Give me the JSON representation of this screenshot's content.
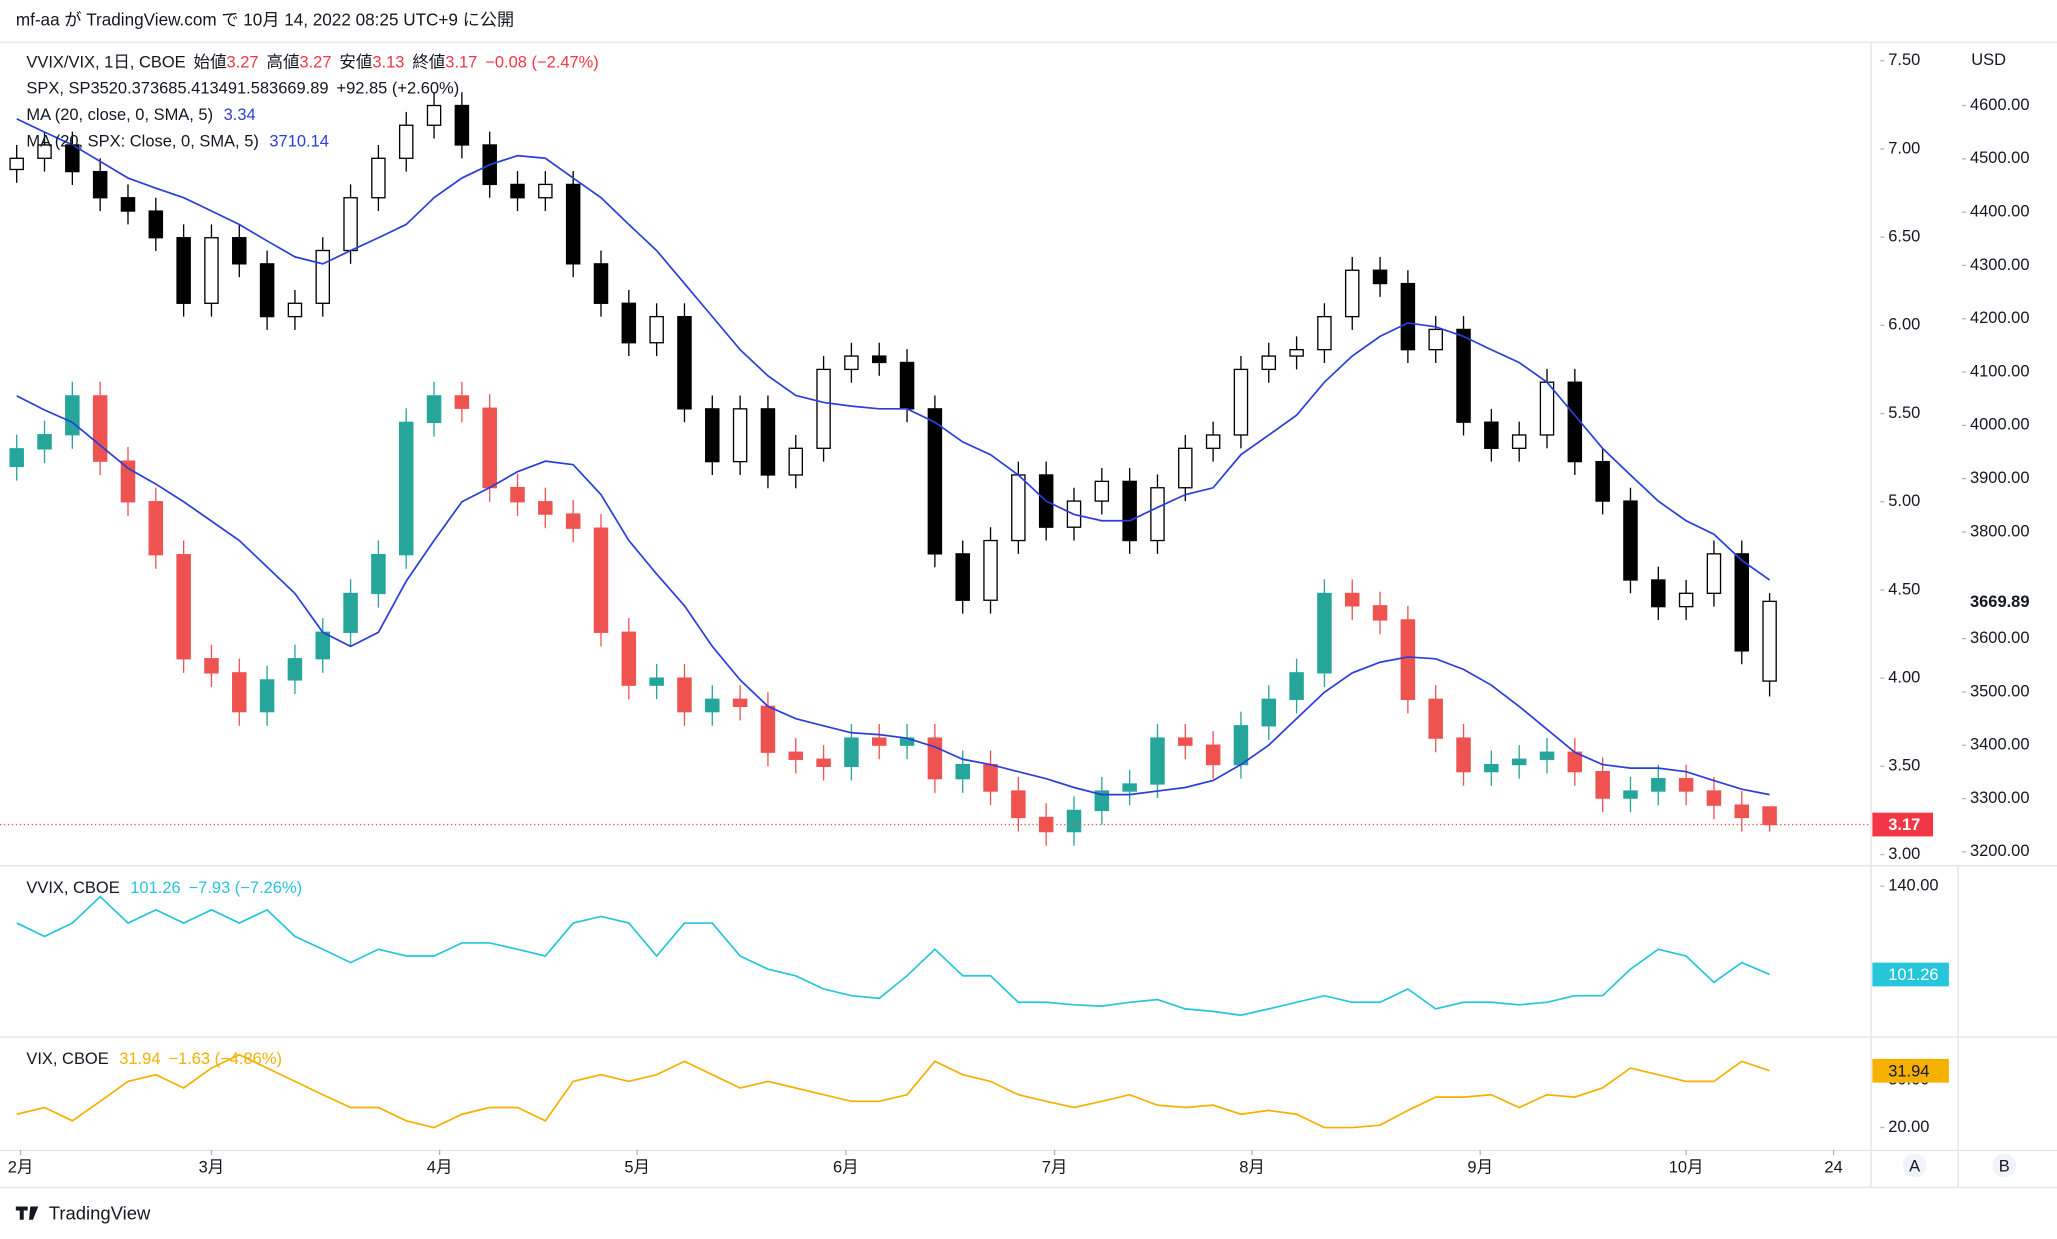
{
  "header": "mf-aa が TradingView.com で 10月 14, 2022 08:25 UTC+9 に公開",
  "footer": "TradingView",
  "chart_data": [
    {
      "type": "candlestick",
      "legend_labels": [
        "始値",
        "高値",
        "安値",
        "終値"
      ],
      "xlim": [
        -0.6,
        66.6
      ],
      "xticks": [
        {
          "value": 0.14,
          "label": "2月"
        },
        {
          "value": 7.0,
          "label": "3月"
        },
        {
          "value": 15.2,
          "label": "4月"
        },
        {
          "value": 22.3,
          "label": "5月"
        },
        {
          "value": 29.8,
          "label": "6月"
        },
        {
          "value": 37.3,
          "label": "7月"
        },
        {
          "value": 44.4,
          "label": "8月"
        },
        {
          "value": 52.6,
          "label": "9月"
        },
        {
          "value": 60.0,
          "label": "10月"
        },
        {
          "value": 65.3,
          "label": "24"
        }
      ],
      "ylim": [
        2.948,
        7.605
      ],
      "yticks": [
        {
          "value": 3,
          "label": "3.00"
        },
        {
          "value": 3.5,
          "label": "3.50"
        },
        {
          "value": 4,
          "label": "4.00"
        },
        {
          "value": 4.5,
          "label": "4.50"
        },
        {
          "value": 5,
          "label": "5.00"
        },
        {
          "value": 5.5,
          "label": "5.50"
        },
        {
          "value": 6,
          "label": "6.00"
        },
        {
          "value": 6.5,
          "label": "6.50"
        },
        {
          "value": 7,
          "label": "7.00"
        },
        {
          "value": 7.5,
          "label": "7.50"
        }
      ],
      "y2lim": [
        3177.8,
        4718.7
      ],
      "y2ticks": [
        {
          "value": 3200,
          "label": "3200.00"
        },
        {
          "value": 3300,
          "label": "3300.00"
        },
        {
          "value": 3400,
          "label": "3400.00"
        },
        {
          "value": 3500,
          "label": "3500.00"
        },
        {
          "value": 3600,
          "label": "3600.00"
        },
        {
          "value": 3800,
          "label": "3800.00"
        },
        {
          "value": 3900,
          "label": "3900.00"
        },
        {
          "value": 4000,
          "label": "4000.00"
        },
        {
          "value": 4100,
          "label": "4100.00"
        },
        {
          "value": 4200,
          "label": "4200.00"
        },
        {
          "value": 4300,
          "label": "4300.00"
        },
        {
          "value": 4400,
          "label": "4400.00"
        },
        {
          "value": 4500,
          "label": "4500.00"
        },
        {
          "value": 4600,
          "label": "4600.00"
        }
      ],
      "y2_label": "USD",
      "grid": false,
      "series": [
        {
          "name": "VVIX/VIX, 1日, CBOE",
          "up_color": "#26a69a",
          "down_color": "#ef5350",
          "legend_color": "#f23645",
          "change_label": "−0.08 (−2.47%)",
          "open": [
            5.2,
            5.3,
            5.38,
            5.6,
            5.23,
            5.0,
            4.7,
            4.11,
            4.03,
            3.81,
            3.99,
            4.11,
            4.26,
            4.48,
            4.7,
            5.45,
            5.6,
            5.53,
            5.08,
            5.0,
            4.93,
            4.85,
            4.26,
            3.96,
            4.0,
            3.81,
            3.88,
            3.84,
            3.58,
            3.54,
            3.5,
            3.66,
            3.62,
            3.66,
            3.43,
            3.51,
            3.36,
            3.21,
            3.13,
            3.25,
            3.36,
            3.4,
            3.66,
            3.62,
            3.51,
            3.73,
            3.88,
            4.03,
            4.48,
            4.41,
            4.33,
            3.88,
            3.66,
            3.47,
            3.51,
            3.54,
            3.58,
            3.47,
            3.32,
            3.36,
            3.43,
            3.36,
            3.28,
            3.27
          ],
          "high": [
            5.38,
            5.46,
            5.68,
            5.68,
            5.31,
            5.08,
            4.78,
            4.19,
            4.11,
            4.07,
            4.19,
            4.34,
            4.56,
            4.78,
            5.53,
            5.68,
            5.68,
            5.61,
            5.16,
            5.08,
            5.01,
            4.93,
            4.34,
            4.08,
            4.08,
            3.96,
            3.96,
            3.92,
            3.66,
            3.62,
            3.74,
            3.74,
            3.74,
            3.74,
            3.59,
            3.59,
            3.44,
            3.29,
            3.33,
            3.44,
            3.48,
            3.74,
            3.74,
            3.7,
            3.81,
            3.96,
            4.11,
            4.56,
            4.56,
            4.49,
            4.41,
            3.96,
            3.74,
            3.59,
            3.62,
            3.66,
            3.66,
            3.55,
            3.44,
            3.51,
            3.51,
            3.44,
            3.36,
            3.27
          ],
          "low": [
            5.12,
            5.22,
            5.3,
            5.15,
            4.92,
            4.62,
            4.03,
            3.95,
            3.73,
            3.73,
            3.91,
            4.03,
            4.18,
            4.4,
            4.62,
            5.37,
            5.45,
            5.0,
            4.92,
            4.85,
            4.77,
            4.18,
            3.88,
            3.88,
            3.73,
            3.73,
            3.76,
            3.5,
            3.46,
            3.42,
            3.42,
            3.54,
            3.54,
            3.35,
            3.35,
            3.28,
            3.13,
            3.05,
            3.05,
            3.17,
            3.28,
            3.32,
            3.54,
            3.43,
            3.43,
            3.65,
            3.8,
            3.95,
            4.33,
            4.25,
            3.8,
            3.58,
            3.39,
            3.39,
            3.43,
            3.46,
            3.39,
            3.24,
            3.24,
            3.28,
            3.28,
            3.2,
            3.13,
            3.13
          ],
          "close": [
            5.3,
            5.38,
            5.6,
            5.23,
            5.0,
            4.7,
            4.11,
            4.03,
            3.81,
            3.99,
            4.11,
            4.26,
            4.48,
            4.7,
            5.45,
            5.6,
            5.53,
            5.08,
            5.0,
            4.93,
            4.85,
            4.26,
            3.96,
            4.0,
            3.81,
            3.88,
            3.84,
            3.58,
            3.54,
            3.5,
            3.66,
            3.62,
            3.66,
            3.43,
            3.51,
            3.36,
            3.21,
            3.13,
            3.25,
            3.36,
            3.4,
            3.66,
            3.62,
            3.51,
            3.73,
            3.88,
            4.03,
            4.48,
            4.41,
            4.33,
            3.88,
            3.66,
            3.47,
            3.51,
            3.54,
            3.58,
            3.47,
            3.32,
            3.36,
            3.43,
            3.36,
            3.28,
            3.21,
            3.17
          ]
        },
        {
          "name": "SPX, SP",
          "axis": "y2",
          "up_color": "#ffffff",
          "down_color": "#000000",
          "border_color": "#000000",
          "legend_color": "#131722",
          "change_label": "+92.85 (+2.60%)",
          "open": [
            4480,
            4501,
            4526,
            4476,
            4427,
            4402,
            4352,
            4229,
            4352,
            4303,
            4204,
            4229,
            4328,
            4427,
            4501,
            4563,
            4600,
            4526,
            4452,
            4427,
            4452,
            4303,
            4229,
            4155,
            4204,
            4031,
            3932,
            4031,
            3907,
            3957,
            4105,
            4130,
            4118,
            4031,
            3759,
            3672,
            3784,
            3907,
            3809,
            3858,
            3895,
            3784,
            3883,
            3957,
            3982,
            4105,
            4130,
            4142,
            4204,
            4291,
            4266,
            4142,
            4180,
            4006,
            3957,
            3982,
            4081,
            3932,
            3858,
            3710,
            3660,
            3685,
            3759,
            3520.37
          ],
          "high": [
            4526,
            4551,
            4551,
            4501,
            4452,
            4427,
            4377,
            4377,
            4377,
            4328,
            4254,
            4353,
            4452,
            4526,
            4588,
            4625,
            4625,
            4551,
            4477,
            4477,
            4477,
            4328,
            4254,
            4229,
            4229,
            4056,
            4056,
            4056,
            3982,
            4130,
            4155,
            4155,
            4143,
            4056,
            3784,
            3809,
            3932,
            3932,
            3883,
            3920,
            3920,
            3908,
            3982,
            4007,
            4130,
            4155,
            4167,
            4229,
            4316,
            4316,
            4291,
            4205,
            4205,
            4031,
            4007,
            4106,
            4106,
            3957,
            3883,
            3735,
            3710,
            3784,
            3784,
            3685.41
          ],
          "low": [
            4455,
            4476,
            4451,
            4402,
            4377,
            4327,
            4204,
            4204,
            4278,
            4179,
            4179,
            4204,
            4303,
            4402,
            4476,
            4538,
            4501,
            4427,
            4402,
            4402,
            4278,
            4204,
            4130,
            4130,
            4006,
            3907,
            3907,
            3882,
            3882,
            3932,
            4080,
            4093,
            4006,
            3734,
            3647,
            3647,
            3759,
            3784,
            3784,
            3833,
            3759,
            3759,
            3858,
            3932,
            3957,
            4080,
            4105,
            4117,
            4179,
            4241,
            4117,
            4117,
            3981,
            3932,
            3932,
            3957,
            3907,
            3833,
            3685,
            3635,
            3635,
            3660,
            3552,
            3491.58
          ],
          "close": [
            4501,
            4526,
            4476,
            4427,
            4402,
            4352,
            4229,
            4352,
            4303,
            4204,
            4229,
            4328,
            4427,
            4501,
            4563,
            4600,
            4526,
            4452,
            4427,
            4452,
            4303,
            4229,
            4155,
            4204,
            4031,
            3932,
            4031,
            3907,
            3957,
            4105,
            4130,
            4118,
            4031,
            3759,
            3672,
            3784,
            3907,
            3809,
            3858,
            3895,
            3784,
            3883,
            3957,
            3982,
            4105,
            4130,
            4142,
            4204,
            4291,
            4266,
            4142,
            4180,
            4006,
            3957,
            3982,
            4081,
            3932,
            3858,
            3710,
            3660,
            3685,
            3759,
            3577,
            3669.89
          ]
        },
        {
          "name": "MA (20, close, 0, SMA, 5)",
          "color": "#2a3fd8",
          "values": [
            5.6,
            5.52,
            5.45,
            5.32,
            5.19,
            5.1,
            5.0,
            4.89,
            4.78,
            4.63,
            4.48,
            4.26,
            4.18,
            4.26,
            4.55,
            4.78,
            5.0,
            5.08,
            5.17,
            5.23,
            5.21,
            5.04,
            4.78,
            4.59,
            4.41,
            4.18,
            3.99,
            3.84,
            3.77,
            3.73,
            3.69,
            3.68,
            3.66,
            3.61,
            3.54,
            3.51,
            3.47,
            3.43,
            3.38,
            3.34,
            3.34,
            3.36,
            3.38,
            3.42,
            3.51,
            3.62,
            3.77,
            3.92,
            4.03,
            4.09,
            4.12,
            4.11,
            4.05,
            3.96,
            3.84,
            3.71,
            3.58,
            3.51,
            3.49,
            3.49,
            3.47,
            3.42,
            3.37,
            3.34
          ]
        },
        {
          "name": "MA (20, SPX: Close, 0, SMA, 5)",
          "axis": "y2",
          "color": "#2a3fd8",
          "values": [
            4575,
            4550,
            4526,
            4495,
            4464,
            4445,
            4427,
            4402,
            4377,
            4346,
            4316,
            4303,
            4328,
            4352,
            4377,
            4427,
            4464,
            4489,
            4506,
            4501,
            4464,
            4427,
            4377,
            4328,
            4266,
            4204,
            4142,
            4093,
            4056,
            4043,
            4036,
            4031,
            4031,
            4006,
            3969,
            3945,
            3907,
            3858,
            3833,
            3821,
            3821,
            3846,
            3870,
            3883,
            3945,
            3982,
            4019,
            4081,
            4130,
            4167,
            4192,
            4185,
            4167,
            4142,
            4118,
            4081,
            4019,
            3957,
            3907,
            3858,
            3821,
            3796,
            3747,
            3710.14
          ]
        }
      ]
    },
    {
      "type": "line",
      "ylim": [
        74.7,
        148.1
      ],
      "yticks": [
        {
          "value": 140,
          "label": "140.00"
        }
      ],
      "series": [
        {
          "name": "VVIX, CBOE",
          "color": "#26c6da",
          "change_label": "−7.93 (−7.26%)",
          "values": [
            123.8,
            118,
            123.8,
            135.4,
            123.8,
            129.6,
            123.8,
            129.6,
            123.8,
            129.6,
            118,
            112.3,
            106.5,
            112.3,
            109.4,
            109.4,
            115.1,
            115.1,
            112.3,
            109.4,
            123.8,
            126.7,
            123.8,
            109.4,
            123.8,
            123.8,
            109.4,
            103.6,
            100.7,
            94.9,
            92,
            90.8,
            100.7,
            112.3,
            100.7,
            100.7,
            89.1,
            89.1,
            88,
            87.4,
            89.1,
            90.3,
            86.2,
            85.1,
            83.4,
            86.2,
            89.1,
            92,
            89.1,
            89.1,
            94.9,
            86.2,
            89.1,
            89.1,
            88,
            89.1,
            92,
            92,
            103.6,
            112.3,
            109.4,
            97.8,
            106.5,
            101.26
          ]
        }
      ]
    },
    {
      "type": "line",
      "ylim": [
        15.3,
        38.6
      ],
      "yticks": [
        {
          "value": 20,
          "label": "20.00"
        },
        {
          "value": 30,
          "label": "30.00"
        }
      ],
      "series": [
        {
          "name": "VIX, CBOE",
          "color": "#f5b000",
          "change_label": "−1.63 (−4.86%)",
          "values": [
            22.8,
            24.2,
            21.4,
            25.5,
            29.7,
            31.1,
            28.3,
            32.5,
            35.3,
            32.5,
            29.7,
            26.9,
            24.2,
            24.2,
            21.4,
            20,
            22.8,
            24.2,
            24.2,
            21.4,
            29.7,
            31.1,
            29.7,
            31.1,
            33.9,
            31.1,
            28.3,
            29.7,
            28.3,
            26.9,
            25.5,
            25.5,
            26.9,
            33.9,
            31.1,
            29.7,
            26.9,
            25.5,
            24.2,
            25.5,
            26.9,
            24.7,
            24.2,
            24.7,
            22.8,
            23.6,
            22.8,
            20,
            20,
            20.5,
            23.6,
            26.4,
            26.4,
            26.9,
            24.2,
            26.9,
            26.4,
            28.3,
            32.5,
            31.1,
            29.7,
            29.7,
            33.9,
            31.94
          ]
        }
      ]
    }
  ]
}
